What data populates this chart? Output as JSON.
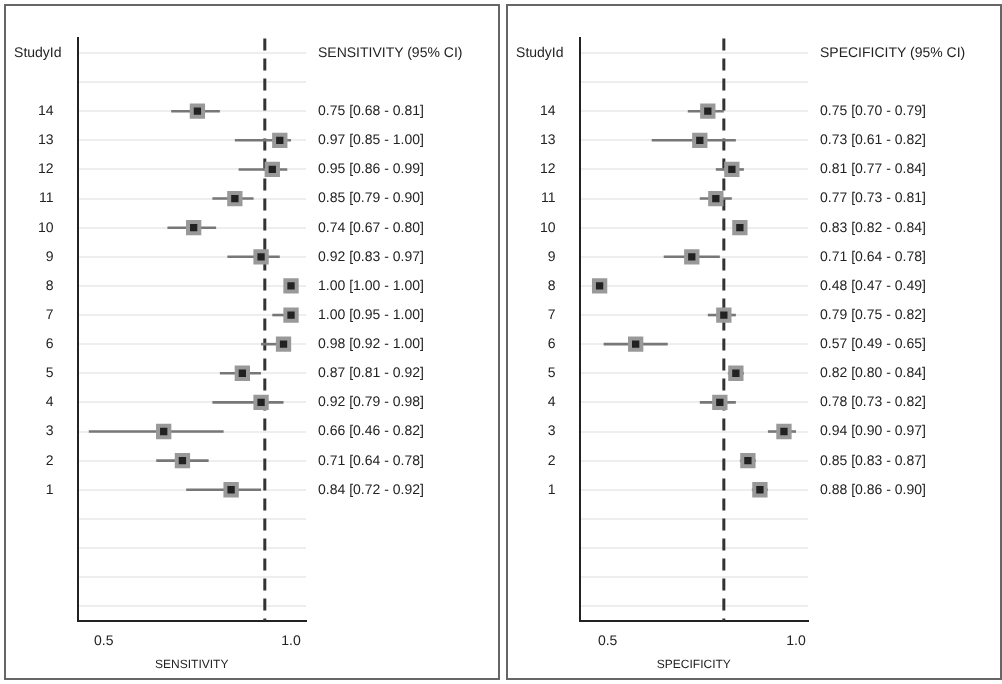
{
  "chart_data": [
    {
      "type": "scatter",
      "orientation": "horizontal",
      "ylabel": "StudyId",
      "xlabel": "SENSITIVITY",
      "annotations": [
        "SENSITIVITY (95% CI)"
      ],
      "categories": [
        null,
        null,
        "14",
        "13",
        "12",
        "11",
        "10",
        "9",
        "8",
        "7",
        "6",
        "5",
        "4",
        "3",
        "2",
        "1",
        null,
        null,
        null,
        null
      ],
      "xlim": [
        0.43,
        1.04
      ],
      "xticks": [
        {
          "value": 0.5,
          "label": "0.5"
        },
        {
          "value": 1,
          "label": "1.0"
        }
      ],
      "grid": "y",
      "marker": "square",
      "ref_lines": [
        {
          "axis": "x",
          "value": 0.93,
          "color": "#333333",
          "line_style": "dashed"
        }
      ],
      "series": [
        {
          "color": "#222222",
          "values": [
            null,
            null,
            0.75,
            0.97,
            0.95,
            0.85,
            0.74,
            0.92,
            1.0,
            1.0,
            0.98,
            0.87,
            0.92,
            0.66,
            0.71,
            0.84,
            null,
            null,
            null,
            null
          ],
          "errors": [
            null,
            null,
            [
              0.68,
              0.81
            ],
            [
              0.85,
              1.0
            ],
            [
              0.86,
              0.99
            ],
            [
              0.79,
              0.9
            ],
            [
              0.67,
              0.8
            ],
            [
              0.83,
              0.97
            ],
            [
              1.0,
              1.0
            ],
            [
              0.95,
              1.0
            ],
            [
              0.92,
              1.0
            ],
            [
              0.81,
              0.92
            ],
            [
              0.79,
              0.98
            ],
            [
              0.46,
              0.82
            ],
            [
              0.64,
              0.78
            ],
            [
              0.72,
              0.92
            ],
            null,
            null,
            null,
            null
          ],
          "value_labels": [
            null,
            null,
            "0.75 [0.68 - 0.81]",
            "0.97 [0.85 - 1.00]",
            "0.95 [0.86 - 0.99]",
            "0.85 [0.79 - 0.90]",
            "0.74 [0.67 - 0.80]",
            "0.92 [0.83 - 0.97]",
            "1.00 [1.00 - 1.00]",
            "1.00 [0.95 - 1.00]",
            "0.98 [0.92 - 1.00]",
            "0.87 [0.81 - 0.92]",
            "0.92 [0.79 - 0.98]",
            "0.66 [0.46 - 0.82]",
            "0.71 [0.64 - 0.78]",
            "0.84 [0.72 - 0.92]",
            null,
            null,
            null,
            null
          ]
        }
      ]
    },
    {
      "type": "scatter",
      "orientation": "horizontal",
      "ylabel": "StudyId",
      "xlabel": "SPECIFICITY",
      "annotations": [
        "SPECIFICITY (95% CI)"
      ],
      "categories": [
        null,
        null,
        "14",
        "13",
        "12",
        "11",
        "10",
        "9",
        "8",
        "7",
        "6",
        "5",
        "4",
        "3",
        "2",
        "1",
        null,
        null,
        null,
        null
      ],
      "xlim": [
        0.43,
        1.0
      ],
      "xticks": [
        {
          "value": 0.5,
          "label": "0.5"
        },
        {
          "value": 0.97,
          "label": "1.0"
        }
      ],
      "grid": "y",
      "marker": "square",
      "ref_lines": [
        {
          "axis": "x",
          "value": 0.79,
          "color": "#333333",
          "line_style": "dashed"
        }
      ],
      "series": [
        {
          "color": "#222222",
          "values": [
            null,
            null,
            0.75,
            0.73,
            0.81,
            0.77,
            0.83,
            0.71,
            0.48,
            0.79,
            0.57,
            0.82,
            0.78,
            0.94,
            0.85,
            0.88,
            null,
            null,
            null,
            null
          ],
          "errors": [
            null,
            null,
            [
              0.7,
              0.79
            ],
            [
              0.61,
              0.82
            ],
            [
              0.77,
              0.84
            ],
            [
              0.73,
              0.81
            ],
            [
              0.82,
              0.84
            ],
            [
              0.64,
              0.78
            ],
            [
              0.47,
              0.49
            ],
            [
              0.75,
              0.82
            ],
            [
              0.49,
              0.65
            ],
            [
              0.8,
              0.84
            ],
            [
              0.73,
              0.82
            ],
            [
              0.9,
              0.97
            ],
            [
              0.83,
              0.87
            ],
            [
              0.86,
              0.9
            ],
            null,
            null,
            null,
            null
          ],
          "value_labels": [
            null,
            null,
            "0.75 [0.70 - 0.79]",
            "0.73 [0.61 - 0.82]",
            "0.81 [0.77 - 0.84]",
            "0.77 [0.73 - 0.81]",
            "0.83 [0.82 - 0.84]",
            "0.71 [0.64 - 0.78]",
            "0.48 [0.47 - 0.49]",
            "0.79 [0.75 - 0.82]",
            "0.57 [0.49 - 0.65]",
            "0.82 [0.80 - 0.84]",
            "0.78 [0.73 - 0.82]",
            "0.94 [0.90 - 0.97]",
            "0.85 [0.83 - 0.87]",
            "0.88 [0.86 - 0.90]",
            null,
            null,
            null,
            null
          ]
        }
      ]
    }
  ]
}
